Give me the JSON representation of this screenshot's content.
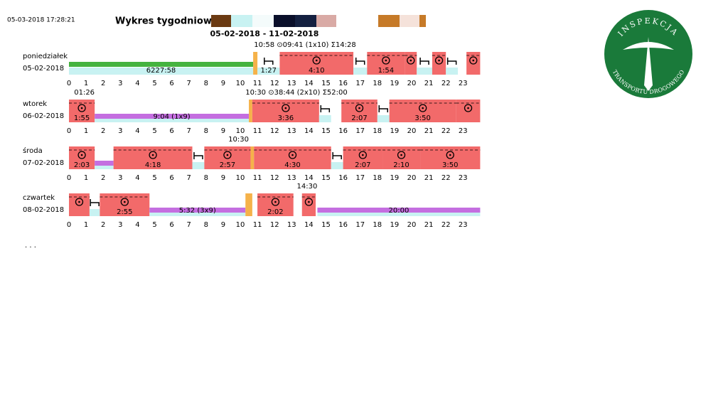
{
  "timestamp": "05-03-2018 17:28:21",
  "title": "Wykres tygodniowy -",
  "range": "05-02-2018 - 11-02-2018",
  "logo": {
    "top": "INSPEKCJA",
    "bottom": "TRANSPORTU DROGOWEGO"
  },
  "colors": {
    "drive": "#f26a6a",
    "rest": "#c8f2f2",
    "avail": "#c46ee0",
    "work": "#f5b24a",
    "green": "#45b33f"
  },
  "hours": [
    0,
    1,
    2,
    3,
    4,
    5,
    6,
    7,
    8,
    9,
    10,
    11,
    12,
    13,
    14,
    15,
    16,
    17,
    18,
    19,
    20,
    21,
    22,
    23
  ],
  "days": [
    {
      "name": "poniedziałek",
      "date": "05-02-2018",
      "notes": [
        {
          "text": "10:58 ⊙09:41 (1x10) Σ14:28",
          "at": 10.8
        }
      ],
      "blocks": [
        {
          "kind": "green",
          "start": 0,
          "end": 10.75,
          "label": "6227:58"
        },
        {
          "kind": "work",
          "start": 10.75,
          "end": 11
        },
        {
          "kind": "rest",
          "start": 11,
          "end": 12.3,
          "label": "1:27"
        },
        {
          "kind": "drive",
          "start": 12.3,
          "end": 16.6,
          "label": "4:10"
        },
        {
          "kind": "rest",
          "start": 16.6,
          "end": 17.4
        },
        {
          "kind": "drive",
          "start": 17.4,
          "end": 19.6,
          "label": "1:54"
        },
        {
          "kind": "drive",
          "start": 19.6,
          "end": 20.3
        },
        {
          "kind": "rest",
          "start": 20.3,
          "end": 21.2
        },
        {
          "kind": "drive",
          "start": 21.2,
          "end": 22
        },
        {
          "kind": "rest",
          "start": 22,
          "end": 22.7
        },
        {
          "kind": "drive",
          "start": 23.2,
          "end": 24
        }
      ]
    },
    {
      "name": "wtorek",
      "date": "06-02-2018",
      "notes": [
        {
          "text": "01:26",
          "at": 0.3
        },
        {
          "text": "10:30 ⊙38:44 (2x10) Σ52:00",
          "at": 10.3
        }
      ],
      "blocks": [
        {
          "kind": "drive",
          "start": 0,
          "end": 1.5,
          "label": "1:55"
        },
        {
          "kind": "avail",
          "start": 1.5,
          "end": 10.5,
          "label": "9:04 (1x9)"
        },
        {
          "kind": "work",
          "start": 10.5,
          "end": 10.7
        },
        {
          "kind": "drive",
          "start": 10.7,
          "end": 14.6,
          "label": "3:36"
        },
        {
          "kind": "rest",
          "start": 14.6,
          "end": 15.3
        },
        {
          "kind": "drive",
          "start": 15.9,
          "end": 18,
          "label": "2:07"
        },
        {
          "kind": "rest",
          "start": 18,
          "end": 18.7
        },
        {
          "kind": "drive",
          "start": 18.7,
          "end": 22.6,
          "label": "3:50"
        },
        {
          "kind": "drive",
          "start": 22.6,
          "end": 24
        }
      ]
    },
    {
      "name": "środa",
      "date": "07-02-2018",
      "notes": [
        {
          "text": "10:30",
          "at": 9.3
        }
      ],
      "blocks": [
        {
          "kind": "drive",
          "start": 0,
          "end": 1.5,
          "label": "2:03"
        },
        {
          "kind": "avail",
          "start": 1.5,
          "end": 2.6
        },
        {
          "kind": "drive",
          "start": 2.6,
          "end": 7.2,
          "label": "4:18"
        },
        {
          "kind": "rest",
          "start": 7.2,
          "end": 7.9
        },
        {
          "kind": "drive",
          "start": 7.9,
          "end": 10.6,
          "label": "2:57"
        },
        {
          "kind": "work",
          "start": 10.6,
          "end": 10.8
        },
        {
          "kind": "drive",
          "start": 10.8,
          "end": 15.3,
          "label": "4:30"
        },
        {
          "kind": "rest",
          "start": 15.3,
          "end": 16
        },
        {
          "kind": "drive",
          "start": 16,
          "end": 18.3,
          "label": "2:07"
        },
        {
          "kind": "drive",
          "start": 18.3,
          "end": 20.5,
          "label": "2:10"
        },
        {
          "kind": "drive",
          "start": 20.5,
          "end": 24,
          "label": "3:50"
        }
      ]
    },
    {
      "name": "czwartek",
      "date": "08-02-2018",
      "notes": [
        {
          "text": "14:30",
          "at": 13.3
        }
      ],
      "blocks": [
        {
          "kind": "drive",
          "start": 0,
          "end": 1.2
        },
        {
          "kind": "rest",
          "start": 1.2,
          "end": 1.8
        },
        {
          "kind": "drive",
          "start": 1.8,
          "end": 4.7,
          "label": "2:55"
        },
        {
          "kind": "avail",
          "start": 4.7,
          "end": 10.3,
          "label": "5:32 (3x9)"
        },
        {
          "kind": "work",
          "start": 10.3,
          "end": 10.7
        },
        {
          "kind": "drive",
          "start": 11,
          "end": 13.1,
          "label": "2:02"
        },
        {
          "kind": "drive",
          "start": 13.6,
          "end": 14.4
        },
        {
          "kind": "avail",
          "start": 14.5,
          "end": 24,
          "label": "20:00"
        }
      ]
    }
  ]
}
